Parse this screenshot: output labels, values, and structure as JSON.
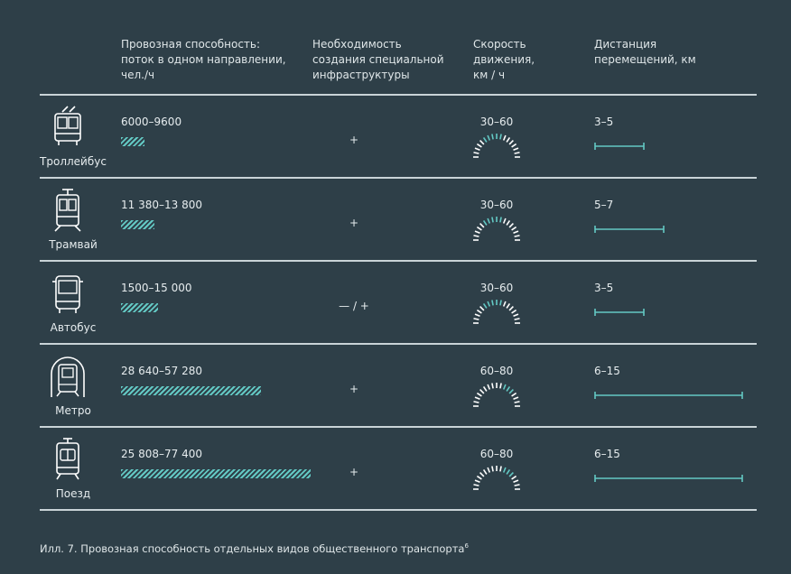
{
  "headers": {
    "capacity": "Провозная способность:\nпоток в одном направлении,\nчел./ч",
    "infrastructure": "Необходимость\nсоздания специальной\nинфраструктуры",
    "speed": "Скорость\nдвижения,\nкм / ч",
    "distance": "Дистанция\nперемещений, км"
  },
  "rows": [
    {
      "name": "Троллейбус",
      "capacity": "6000–9600",
      "infra": "+",
      "speed": "30–60",
      "distance": "3–5",
      "icon": "trolleybus-icon"
    },
    {
      "name": "Трамвай",
      "capacity": "11 380–13 800",
      "infra": "+",
      "speed": "30–60",
      "distance": "5–7",
      "icon": "tram-icon"
    },
    {
      "name": "Автобус",
      "capacity": "1500–15 000",
      "infra": "— / +",
      "speed": "30–60",
      "distance": "3–5",
      "icon": "bus-icon"
    },
    {
      "name": "Метро",
      "capacity": "28 640–57 280",
      "infra": "+",
      "speed": "60–80",
      "distance": "6–15",
      "icon": "metro-icon"
    },
    {
      "name": "Поезд",
      "capacity": "25 808–77 400",
      "infra": "+",
      "speed": "60–80",
      "distance": "6–15",
      "icon": "train-icon"
    }
  ],
  "caption": "Илл. 7. Провозная способность отдельных видов общественного транспорта",
  "caption_sup": "6",
  "colors": {
    "accent": "#63c9c4",
    "background": "#2e3f48",
    "line": "#c9d3d7"
  },
  "chart_data": {
    "type": "table",
    "title": "",
    "columns": [
      "Провозная способность: поток в одном направлении, чел./ч",
      "Необходимость создания специальной инфраструктуры",
      "Скорость движения, км / ч",
      "Дистанция перемещений, км"
    ],
    "categories": [
      "Троллейбус",
      "Трамвай",
      "Автобус",
      "Метро",
      "Поезд"
    ],
    "series": [
      {
        "name": "Провозная способность",
        "values": [
          [
            6000,
            9600
          ],
          [
            11380,
            13800
          ],
          [
            1500,
            15000
          ],
          [
            28640,
            57280
          ],
          [
            25808,
            77400
          ]
        ]
      },
      {
        "name": "Скорость движения",
        "values": [
          [
            30,
            60
          ],
          [
            30,
            60
          ],
          [
            30,
            60
          ],
          [
            60,
            80
          ],
          [
            60,
            80
          ]
        ]
      },
      {
        "name": "Дистанция перемещений",
        "values": [
          [
            3,
            5
          ],
          [
            5,
            7
          ],
          [
            3,
            5
          ],
          [
            6,
            15
          ],
          [
            6,
            15
          ]
        ]
      }
    ],
    "infrastructure": [
      "+",
      "+",
      "— / +",
      "+",
      "+"
    ]
  }
}
